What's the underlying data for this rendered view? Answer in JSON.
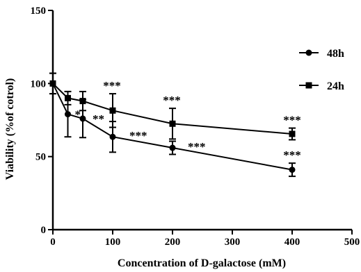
{
  "chart_data": {
    "type": "line",
    "xlabel": "Concentration of D-galactose (mM)",
    "ylabel": "Viability (%of cotrol)",
    "xlim": [
      0,
      500
    ],
    "ylim": [
      0,
      150
    ],
    "x_ticks": [
      0,
      100,
      200,
      300,
      400,
      500
    ],
    "y_ticks": [
      0,
      50,
      100,
      150
    ],
    "grid": false,
    "legend_position": "top-right",
    "series": [
      {
        "name": "48h",
        "marker": "circle",
        "x": [
          0,
          25,
          50,
          100,
          200,
          400
        ],
        "y": [
          100,
          79,
          76,
          63.5,
          56,
          41
        ],
        "error": [
          7,
          15.5,
          13,
          10.5,
          4.5,
          4.5
        ],
        "significance": [
          "",
          "*",
          "**",
          "***",
          "***",
          "***"
        ]
      },
      {
        "name": "24h",
        "marker": "square",
        "x": [
          0,
          25,
          50,
          100,
          200,
          400
        ],
        "y": [
          100,
          90,
          88,
          81.5,
          72.5,
          65.5
        ],
        "error": [
          7,
          4.5,
          6.5,
          11.5,
          10.5,
          4
        ],
        "significance": [
          "",
          "",
          "",
          "***",
          "***",
          "***"
        ]
      }
    ]
  }
}
